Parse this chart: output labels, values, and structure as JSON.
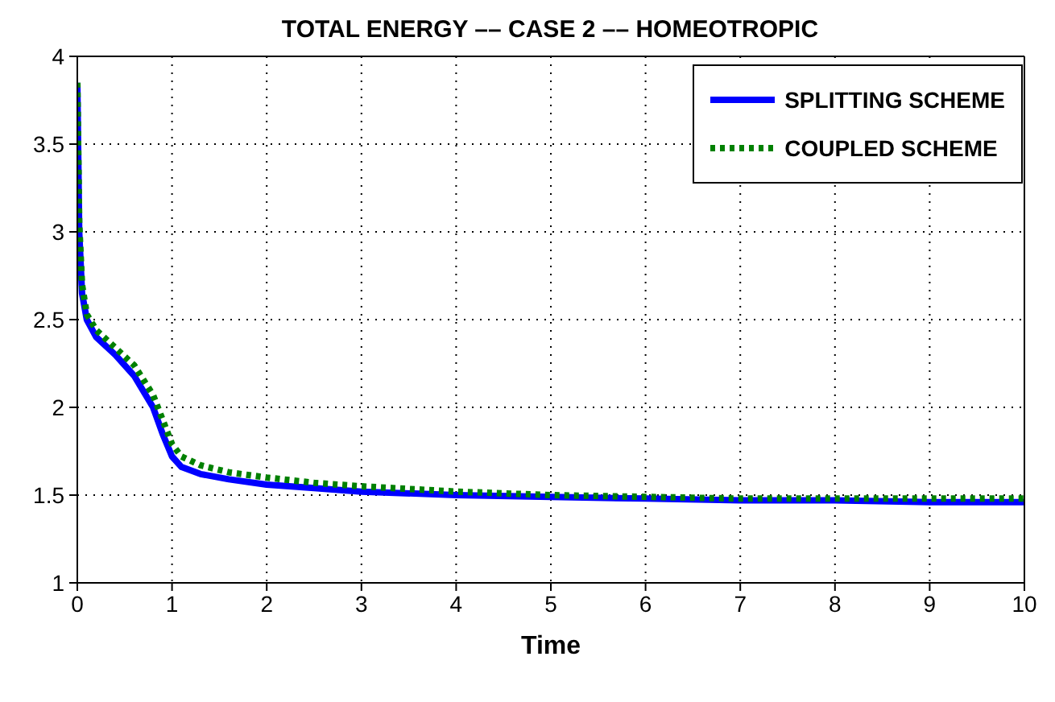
{
  "chart_data": {
    "type": "line",
    "title": "TOTAL ENERGY ––  CASE 2 –– HOMEOTROPIC",
    "xlabel": "Time",
    "xlim": [
      0,
      10
    ],
    "xticks": [
      0,
      1,
      2,
      3,
      4,
      5,
      6,
      7,
      8,
      9,
      10
    ],
    "ylim": [
      1,
      4
    ],
    "yticks": [
      1,
      1.5,
      2,
      2.5,
      3,
      3.5,
      4
    ],
    "grid": true,
    "legend": "top right",
    "series": [
      {
        "name": "SPLITTING SCHEME",
        "color": "#0000ff",
        "line_style": "solid",
        "x": [
          0,
          0.02,
          0.05,
          0.1,
          0.2,
          0.4,
          0.6,
          0.8,
          0.9,
          1,
          1.1,
          1.3,
          1.6,
          2,
          2.5,
          3,
          4,
          5,
          6,
          7,
          8,
          9,
          10
        ],
        "values": [
          3.85,
          3.0,
          2.65,
          2.5,
          2.4,
          2.3,
          2.18,
          2.0,
          1.85,
          1.72,
          1.66,
          1.62,
          1.59,
          1.56,
          1.54,
          1.52,
          1.5,
          1.49,
          1.48,
          1.47,
          1.47,
          1.46,
          1.46
        ]
      },
      {
        "name": "COUPLED SCHEME",
        "color": "#008000",
        "line_style": "dotted",
        "x": [
          0,
          0.02,
          0.05,
          0.1,
          0.2,
          0.4,
          0.6,
          0.8,
          0.9,
          1,
          1.1,
          1.3,
          1.6,
          2,
          2.5,
          3,
          4,
          5,
          6,
          7,
          8,
          9,
          10
        ],
        "values": [
          3.85,
          3.05,
          2.7,
          2.53,
          2.44,
          2.34,
          2.24,
          2.07,
          1.93,
          1.79,
          1.72,
          1.67,
          1.63,
          1.6,
          1.57,
          1.55,
          1.52,
          1.5,
          1.49,
          1.48,
          1.48,
          1.48,
          1.48
        ]
      }
    ]
  }
}
